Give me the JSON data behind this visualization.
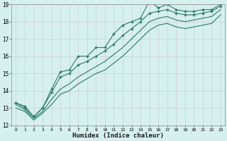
{
  "xlabel": "Humidex (Indice chaleur)",
  "bg_color": "#d6f0ee",
  "grid_color": "#c8dede",
  "line_color": "#2a7a6a",
  "xmin": 0,
  "xmax": 23,
  "ymin": 12,
  "ymax": 19,
  "x_values": [
    0,
    1,
    2,
    3,
    4,
    5,
    6,
    7,
    8,
    9,
    10,
    11,
    12,
    13,
    14,
    15,
    16,
    17,
    18,
    19,
    20,
    21,
    22,
    23
  ],
  "line1": [
    13.3,
    13.1,
    12.5,
    13.0,
    14.1,
    15.1,
    15.2,
    16.0,
    16.0,
    16.5,
    16.5,
    17.3,
    17.8,
    18.0,
    18.2,
    19.2,
    18.8,
    19.0,
    18.7,
    18.6,
    18.6,
    18.7,
    18.7,
    19.0
  ],
  "line2": [
    13.3,
    13.0,
    12.5,
    13.0,
    13.9,
    14.8,
    15.0,
    15.5,
    15.7,
    16.0,
    16.3,
    16.7,
    17.2,
    17.6,
    18.0,
    18.5,
    18.6,
    18.7,
    18.5,
    18.4,
    18.4,
    18.5,
    18.6,
    18.9
  ],
  "line3": [
    13.2,
    12.9,
    12.4,
    12.8,
    13.5,
    14.1,
    14.4,
    14.8,
    15.1,
    15.4,
    15.7,
    16.1,
    16.5,
    17.0,
    17.5,
    18.0,
    18.2,
    18.3,
    18.1,
    18.0,
    18.1,
    18.2,
    18.3,
    18.7
  ],
  "line4": [
    13.0,
    12.8,
    12.3,
    12.7,
    13.2,
    13.8,
    14.0,
    14.4,
    14.7,
    15.0,
    15.2,
    15.6,
    16.0,
    16.5,
    17.0,
    17.5,
    17.8,
    17.9,
    17.7,
    17.6,
    17.7,
    17.8,
    17.9,
    18.4
  ]
}
